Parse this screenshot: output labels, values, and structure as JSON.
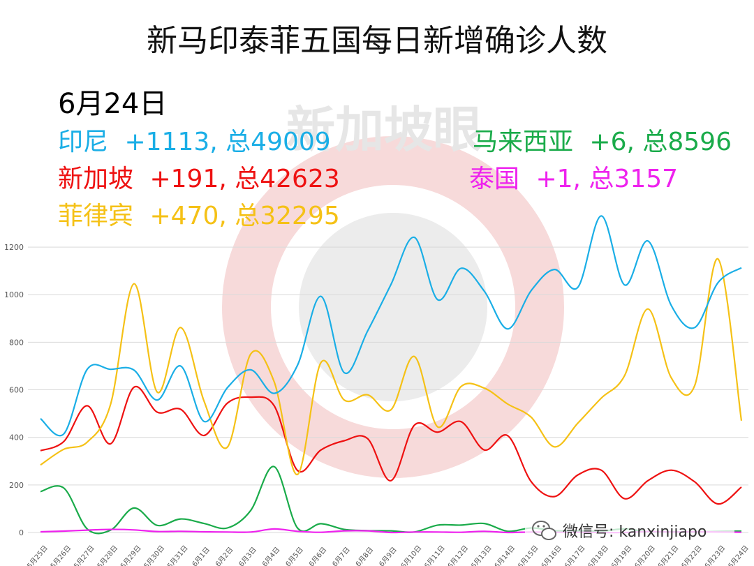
{
  "chart_data": {
    "type": "line",
    "title": "新马印泰菲五国每日新增确诊人数",
    "date_label": "6月24日",
    "ylim": [
      0,
      1300
    ],
    "yticks": [
      0,
      200,
      400,
      600,
      800,
      1000,
      1200
    ],
    "grid": true,
    "categories": [
      "5月25日",
      "5月26日",
      "5月27日",
      "5月28日",
      "5月29日",
      "5月30日",
      "5月31日",
      "6月1日",
      "6月2日",
      "6月3日",
      "6月4日",
      "6月5日",
      "6月6日",
      "6月7日",
      "6月8日",
      "6月9日",
      "6月10日",
      "6月11日",
      "6月12日",
      "6月13日",
      "6月14日",
      "6月15日",
      "6月16日",
      "6月17日",
      "6月18日",
      "6月19日",
      "6月20日",
      "6月21日",
      "6月22日",
      "6月23日",
      "6月24日"
    ],
    "series": [
      {
        "name": "印尼",
        "color": "#1aaee6",
        "values": [
          479,
          415,
          686,
          686,
          683,
          557,
          700,
          467,
          609,
          684,
          585,
          703,
          993,
          672,
          847,
          1043,
          1241,
          979,
          1111,
          1014,
          856,
          1017,
          1106,
          1031,
          1331,
          1041,
          1226,
          954,
          862,
          1051,
          1113
        ]
      },
      {
        "name": "新加坡",
        "color": "#ee1111",
        "values": [
          344,
          383,
          533,
          373,
          611,
          506,
          518,
          408,
          544,
          569,
          533,
          261,
          347,
          386,
          395,
          218,
          451,
          422,
          466,
          347,
          407,
          214,
          151,
          242,
          262,
          142,
          218,
          262,
          213,
          120,
          191
        ]
      },
      {
        "name": "菲律宾",
        "color": "#f5c116",
        "values": [
          284,
          350,
          380,
          539,
          1046,
          590,
          862,
          552,
          359,
          751,
          634,
          244,
          714,
          557,
          579,
          516,
          740,
          444,
          614,
          607,
          540,
          485,
          360,
          460,
          565,
          660,
          940,
          650,
          618,
          1150,
          470
        ]
      },
      {
        "name": "马来西亚",
        "color": "#1aab4a",
        "values": [
          172,
          187,
          15,
          10,
          103,
          30,
          57,
          38,
          19,
          93,
          277,
          19,
          37,
          13,
          8,
          7,
          2,
          31,
          31,
          38,
          5,
          19,
          8,
          7,
          6,
          15,
          3,
          3,
          2,
          5,
          6
        ]
      },
      {
        "name": "泰国",
        "color": "#ee22ee",
        "values": [
          3,
          6,
          10,
          13,
          11,
          4,
          5,
          3,
          2,
          2,
          15,
          5,
          1,
          7,
          7,
          0,
          2,
          2,
          1,
          5,
          0,
          2,
          1,
          1,
          0,
          0,
          4,
          2,
          3,
          2,
          1
        ]
      }
    ]
  },
  "summary": {
    "indonesia": {
      "name": "印尼",
      "stat": "+1113, 总49009",
      "color": "#1aaee6"
    },
    "singapore": {
      "name": "新加坡",
      "stat": "+191, 总42623",
      "color": "#ee1111"
    },
    "philippines": {
      "name": "菲律宾",
      "stat": "+470, 总32295",
      "color": "#f5c116"
    },
    "malaysia": {
      "name": "马来西亚",
      "stat": "+6, 总8596",
      "color": "#1aab4a"
    },
    "thailand": {
      "name": "泰国",
      "stat": "+1, 总3157",
      "color": "#ee22ee"
    }
  },
  "watermark": {
    "text": "新加坡眼"
  },
  "wechat": {
    "icon": "wechat-icon",
    "text": "微信号: kanxinjiapo"
  }
}
